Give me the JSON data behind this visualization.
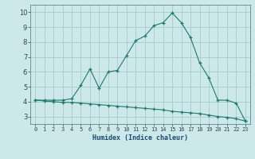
{
  "xlabel": "Humidex (Indice chaleur)",
  "x": [
    0,
    1,
    2,
    3,
    4,
    5,
    6,
    7,
    8,
    9,
    10,
    11,
    12,
    13,
    14,
    15,
    16,
    17,
    18,
    19,
    20,
    21,
    22,
    23
  ],
  "line1_y": [
    4.1,
    4.1,
    4.1,
    4.1,
    4.2,
    5.1,
    6.2,
    4.9,
    6.0,
    6.1,
    7.1,
    8.1,
    8.4,
    9.1,
    9.3,
    9.95,
    9.3,
    8.3,
    6.6,
    5.6,
    4.1,
    4.1,
    3.9,
    2.7
  ],
  "line2_y": [
    4.1,
    4.05,
    4.0,
    3.95,
    3.95,
    3.9,
    3.85,
    3.8,
    3.75,
    3.7,
    3.65,
    3.6,
    3.55,
    3.5,
    3.45,
    3.35,
    3.3,
    3.25,
    3.2,
    3.1,
    3.0,
    2.95,
    2.85,
    2.7
  ],
  "line_color": "#1a7a6e",
  "bg_color": "#cce8e8",
  "grid_color": "#aacece",
  "ylim": [
    2.5,
    10.5
  ],
  "xlim": [
    -0.5,
    23.5
  ],
  "yticks": [
    3,
    4,
    5,
    6,
    7,
    8,
    9,
    10
  ],
  "xticks": [
    0,
    1,
    2,
    3,
    4,
    5,
    6,
    7,
    8,
    9,
    10,
    11,
    12,
    13,
    14,
    15,
    16,
    17,
    18,
    19,
    20,
    21,
    22,
    23
  ]
}
